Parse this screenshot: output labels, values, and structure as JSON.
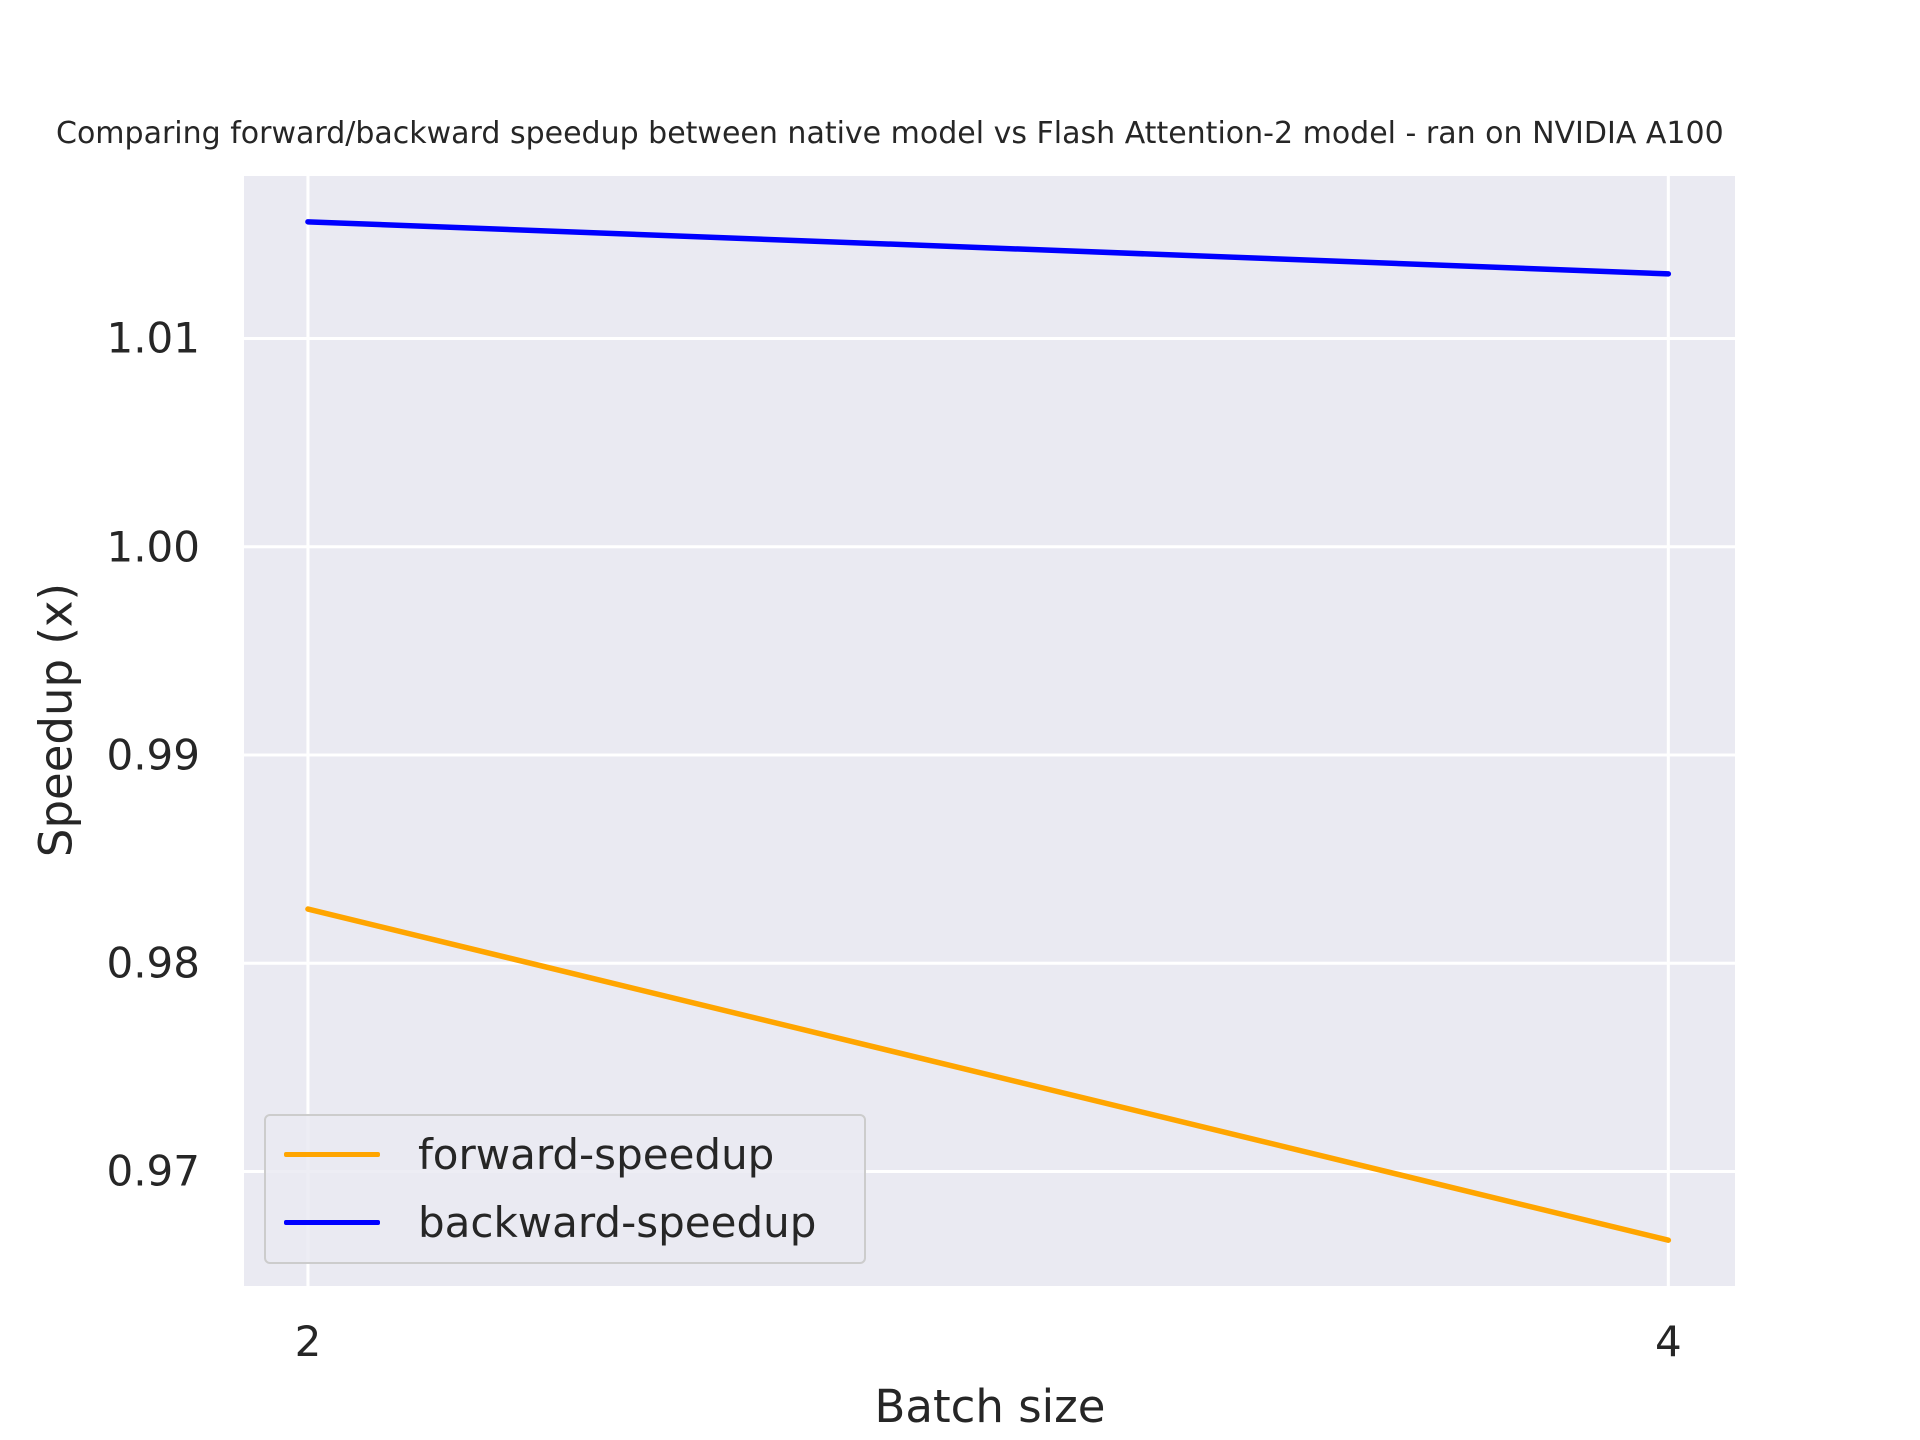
{
  "chart_data": {
    "type": "line",
    "title": "Comparing forward/backward speedup between native model vs Flash Attention-2 model - ran on NVIDIA A100",
    "xlabel": "Batch size",
    "ylabel": "Speedup (x)",
    "x": [
      2,
      4
    ],
    "x_tick_labels": [
      "2",
      "4"
    ],
    "y_ticks": [
      0.97,
      0.98,
      0.99,
      1.0,
      1.01
    ],
    "y_tick_labels": [
      "0.97",
      "0.98",
      "0.99",
      "1.00",
      "1.01"
    ],
    "xlim": [
      1.906,
      4.098
    ],
    "ylim": [
      0.9645,
      1.0178
    ],
    "grid": true,
    "legend_position": "lower-left",
    "background_color": "#eaeaf2",
    "series": [
      {
        "name": "forward-speedup",
        "color": "#ffa500",
        "values": [
          0.9826,
          0.9667
        ]
      },
      {
        "name": "backward-speedup",
        "color": "#0000ff",
        "values": [
          1.0156,
          1.0131
        ]
      }
    ]
  }
}
